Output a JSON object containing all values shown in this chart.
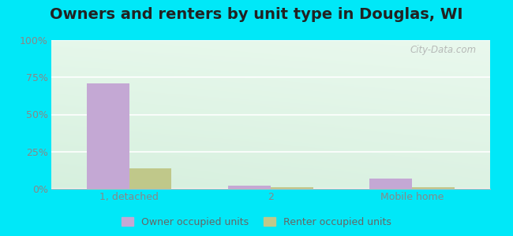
{
  "title": "Owners and renters by unit type in Douglas, WI",
  "categories": [
    "1, detached",
    "2",
    "Mobile home"
  ],
  "owner_values": [
    71,
    2,
    7
  ],
  "renter_values": [
    14,
    1,
    1
  ],
  "owner_color": "#c4a8d4",
  "renter_color": "#c0c88a",
  "ylim": [
    0,
    100
  ],
  "yticks": [
    0,
    25,
    50,
    75,
    100
  ],
  "ytick_labels": [
    "0%",
    "25%",
    "50%",
    "75%",
    "100%"
  ],
  "bar_width": 0.3,
  "bg_color_topleft": "#ddf0e8",
  "bg_color_topright": "#eaf8f0",
  "bg_color_bottomleft": "#d8eedd",
  "bg_color_bottomright": "#e8f8ee",
  "outer_color": "#00e8f8",
  "title_fontsize": 14,
  "legend_labels": [
    "Owner occupied units",
    "Renter occupied units"
  ],
  "watermark": "City-Data.com",
  "tick_color": "#888888",
  "grid_color": "#ffffff"
}
